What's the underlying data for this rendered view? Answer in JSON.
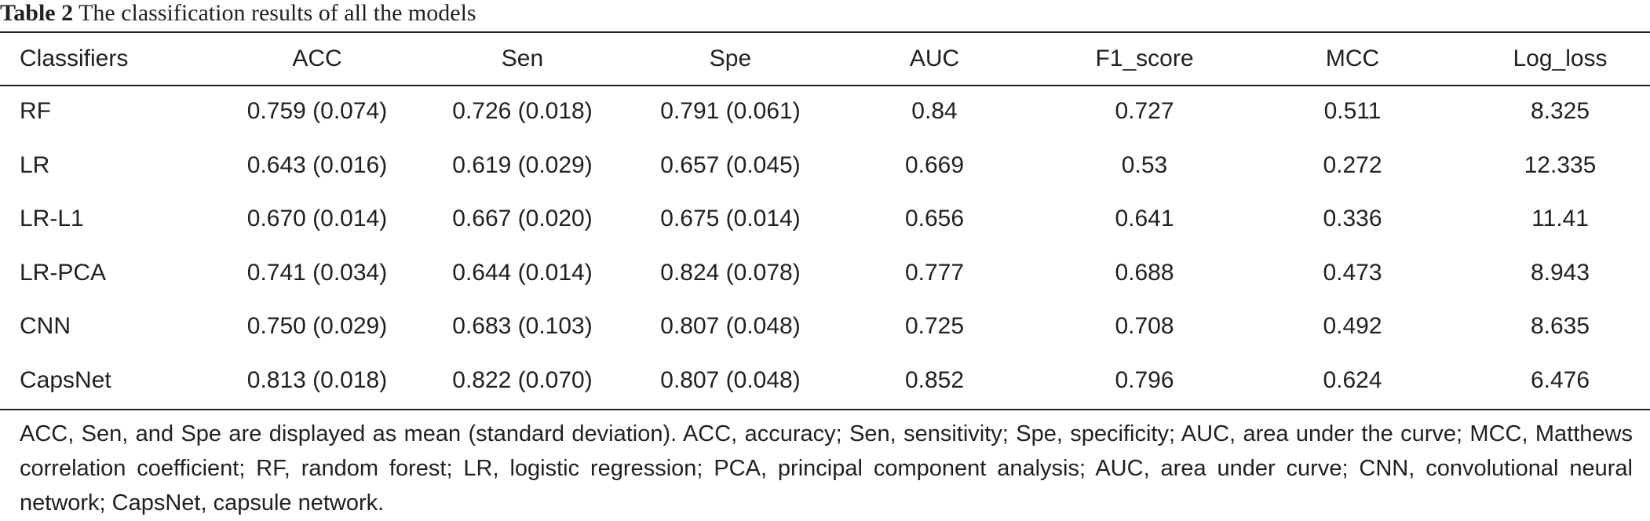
{
  "caption": {
    "label": "Table 2",
    "text": "The classification results of all the models"
  },
  "table": {
    "headers": [
      "Classifiers",
      "ACC",
      "Sen",
      "Spe",
      "AUC",
      "F1_score",
      "MCC",
      "Log_loss"
    ],
    "rows": [
      [
        "RF",
        "0.759 (0.074)",
        "0.726 (0.018)",
        "0.791 (0.061)",
        "0.84",
        "0.727",
        "0.511",
        "8.325"
      ],
      [
        "LR",
        "0.643 (0.016)",
        "0.619 (0.029)",
        "0.657 (0.045)",
        "0.669",
        "0.53",
        "0.272",
        "12.335"
      ],
      [
        "LR-L1",
        "0.670 (0.014)",
        "0.667 (0.020)",
        "0.675 (0.014)",
        "0.656",
        "0.641",
        "0.336",
        "11.41"
      ],
      [
        "LR-PCA",
        "0.741 (0.034)",
        "0.644 (0.014)",
        "0.824 (0.078)",
        "0.777",
        "0.688",
        "0.473",
        "8.943"
      ],
      [
        "CNN",
        "0.750 (0.029)",
        "0.683 (0.103)",
        "0.807 (0.048)",
        "0.725",
        "0.708",
        "0.492",
        "8.635"
      ],
      [
        "CapsNet",
        "0.813 (0.018)",
        "0.822 (0.070)",
        "0.807 (0.048)",
        "0.852",
        "0.796",
        "0.624",
        "6.476"
      ]
    ]
  },
  "footnote": "ACC, Sen, and Spe are displayed as mean (standard deviation). ACC, accuracy; Sen, sensitivity; Spe, specificity; AUC, area under the curve; MCC, Matthews correlation coefficient; RF, random forest; LR, logistic regression; PCA, principal component analysis; AUC, area under curve; CNN, convolutional neural network; CapsNet, capsule network.",
  "colors": {
    "text": "#231f20",
    "rule": "#231f20",
    "background": "#ffffff"
  }
}
